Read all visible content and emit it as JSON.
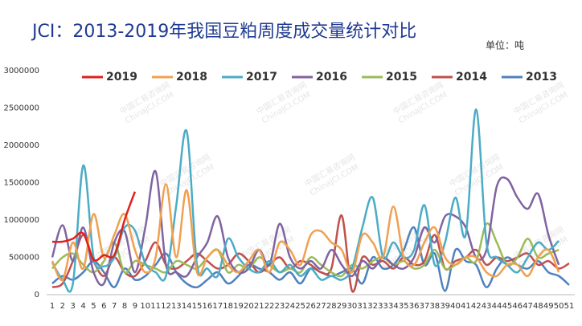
{
  "chart_data": {
    "type": "line",
    "title": "JCI：2013-2019年我国豆粕周度成交量统计对比",
    "unit_label": "单位：吨",
    "watermark_lines": [
      "中国汇易咨询网",
      "ChinaJCI.COM"
    ],
    "categories": [
      "1",
      "2",
      "3",
      "4",
      "5",
      "6",
      "7",
      "8",
      "9",
      "10",
      "11",
      "12",
      "13",
      "14",
      "15",
      "16",
      "17",
      "18",
      "19",
      "20",
      "21",
      "22",
      "23",
      "24",
      "25",
      "26",
      "27",
      "28",
      "29",
      "30",
      "31",
      "32",
      "33",
      "34",
      "35",
      "36",
      "37",
      "38",
      "39",
      "40",
      "41",
      "42",
      "43",
      "44",
      "45",
      "46",
      "47",
      "48",
      "49",
      "50",
      "51"
    ],
    "ylim": [
      0,
      3000000
    ],
    "yticks": [
      0,
      500000,
      1000000,
      1500000,
      2000000,
      2500000,
      3000000
    ],
    "grid": false,
    "legend": "top",
    "series": [
      {
        "name": "2019",
        "color": "#e0201b",
        "values": [
          710000,
          710000,
          750000,
          820000,
          470000,
          530000,
          530000,
          1000000,
          1380000,
          null,
          null,
          null,
          null,
          null,
          null,
          null,
          null,
          null,
          null,
          null,
          null,
          null,
          null,
          null,
          null,
          null,
          null,
          null,
          null,
          null,
          null,
          null,
          null,
          null,
          null,
          null,
          null,
          null,
          null,
          null,
          null,
          null,
          null,
          null,
          null,
          null,
          null,
          null,
          null,
          null,
          null
        ]
      },
      {
        "name": "2018",
        "color": "#f0a050",
        "values": [
          450000,
          200000,
          700000,
          350000,
          1080000,
          500000,
          800000,
          1080000,
          600000,
          300000,
          500000,
          1480000,
          500000,
          1400000,
          300000,
          500000,
          600000,
          400000,
          300000,
          450000,
          600000,
          300000,
          700000,
          600000,
          400000,
          800000,
          850000,
          700000,
          600000,
          300000,
          800000,
          700000,
          500000,
          1180000,
          500000,
          400000,
          700000,
          900000,
          500000,
          400000,
          500000,
          500000,
          300000,
          250000,
          400000,
          400000,
          250000,
          500000,
          600000,
          300000,
          null
        ]
      },
      {
        "name": "2017",
        "color": "#4bacc6",
        "values": [
          430000,
          200000,
          150000,
          1730000,
          500000,
          380000,
          500000,
          900000,
          860000,
          420000,
          300000,
          250000,
          1200000,
          2190000,
          400000,
          350000,
          250000,
          750000,
          500000,
          350000,
          300000,
          450000,
          300000,
          400000,
          250000,
          350000,
          200000,
          250000,
          200000,
          350000,
          900000,
          1300000,
          500000,
          700000,
          500000,
          600000,
          1200000,
          400000,
          700000,
          1300000,
          800000,
          2480000,
          700000,
          500000,
          400000,
          300000,
          500000,
          700000,
          600000,
          720000,
          null
        ]
      },
      {
        "name": "2016",
        "color": "#8064a2",
        "values": [
          500000,
          930000,
          450000,
          900000,
          300000,
          150000,
          700000,
          850000,
          300000,
          900000,
          1650000,
          400000,
          300000,
          250000,
          500000,
          700000,
          1050000,
          500000,
          300000,
          350000,
          600000,
          400000,
          950000,
          500000,
          350000,
          450000,
          350000,
          600000,
          400000,
          250000,
          450000,
          350000,
          500000,
          400000,
          350000,
          500000,
          900000,
          700000,
          1050000,
          1050000,
          900000,
          500000,
          600000,
          1450000,
          1550000,
          1300000,
          1150000,
          1350000,
          800000,
          400000,
          null
        ]
      },
      {
        "name": "2015",
        "color": "#9bbb59",
        "values": [
          350000,
          500000,
          550000,
          400000,
          300000,
          450000,
          700000,
          300000,
          450000,
          400000,
          350000,
          300000,
          450000,
          400000,
          350000,
          500000,
          600000,
          300000,
          400000,
          350000,
          500000,
          400000,
          300000,
          350000,
          300000,
          500000,
          400000,
          300000,
          250000,
          400000,
          350000,
          450000,
          500000,
          400000,
          450000,
          350000,
          400000,
          600000,
          350000,
          400000,
          500000,
          450000,
          950000,
          700000,
          400000,
          500000,
          750000,
          500000,
          550000,
          600000,
          null
        ]
      },
      {
        "name": "2014",
        "color": "#c0504d",
        "values": [
          100000,
          150000,
          450000,
          800000,
          450000,
          250000,
          500000,
          300000,
          250000,
          450000,
          700000,
          400000,
          350000,
          450000,
          550000,
          450000,
          350000,
          400000,
          550000,
          450000,
          300000,
          400000,
          500000,
          350000,
          450000,
          400000,
          300000,
          350000,
          1060000,
          50000,
          500000,
          400000,
          450000,
          350000,
          500000,
          400000,
          450000,
          800000,
          350000,
          450000,
          500000,
          600000,
          400000,
          500000,
          450000,
          500000,
          550000,
          400000,
          450000,
          350000,
          420000
        ]
      },
      {
        "name": "2013",
        "color": "#4f81bd",
        "values": [
          150000,
          250000,
          200000,
          300000,
          450000,
          300000,
          100000,
          350000,
          200000,
          250000,
          400000,
          550000,
          300000,
          150000,
          100000,
          200000,
          300000,
          150000,
          250000,
          400000,
          350000,
          300000,
          200000,
          300000,
          150000,
          350000,
          300000,
          250000,
          300000,
          350000,
          150000,
          500000,
          350000,
          400000,
          600000,
          900000,
          400000,
          550000,
          50000,
          600000,
          450000,
          400000,
          100000,
          350000,
          500000,
          400000,
          350000,
          450000,
          300000,
          250000,
          130000
        ]
      }
    ]
  }
}
